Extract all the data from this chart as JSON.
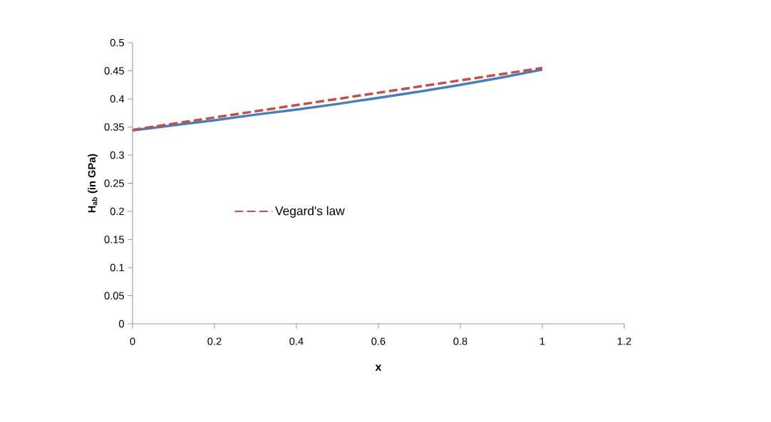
{
  "chart_data": {
    "type": "line",
    "xlabel": "x",
    "ylabel": "H$_{ab}$  (in GPa)",
    "xlim": [
      0,
      1.2
    ],
    "xticks": [
      0,
      0.2,
      0.4,
      0.6,
      0.8,
      1,
      1.2
    ],
    "ylim": [
      0,
      0.5
    ],
    "yticks": [
      0,
      0.05,
      0.1,
      0.15,
      0.2,
      0.25,
      0.3,
      0.35,
      0.4,
      0.45,
      0.5
    ],
    "grid": false,
    "legend": "left",
    "marker": "none",
    "series": [
      {
        "color": "#4a7ebb",
        "line_style": "solid",
        "x": [
          0,
          0.1,
          0.2,
          0.3,
          0.4,
          0.5,
          0.6,
          0.7,
          0.8,
          0.9,
          1
        ],
        "values": [
          0.344,
          0.353,
          0.362,
          0.372,
          0.381,
          0.391,
          0.402,
          0.413,
          0.425,
          0.438,
          0.452
        ]
      },
      {
        "name": "Vegard's law",
        "color": "#c0504d",
        "line_style": "dashed",
        "x": [
          0,
          1
        ],
        "values": [
          0.345,
          0.455
        ]
      }
    ]
  }
}
